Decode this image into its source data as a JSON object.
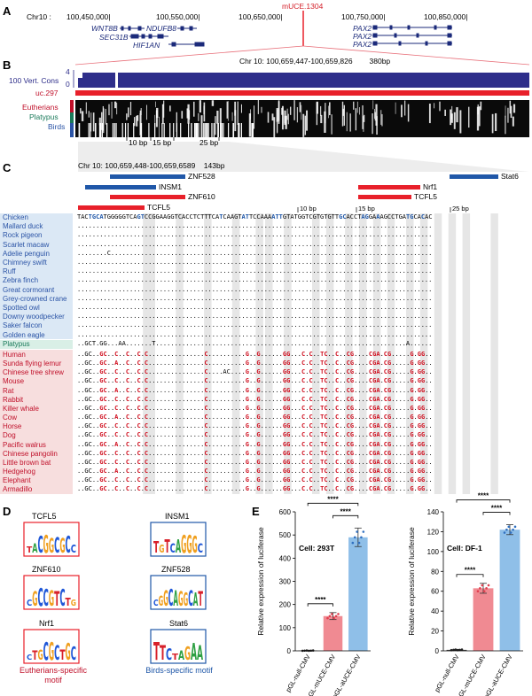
{
  "panels": {
    "a": "A",
    "b": "B",
    "c": "C",
    "d": "D",
    "e": "E"
  },
  "panelA": {
    "chrom": "Chr10 :",
    "ticks": [
      "100,450,000|",
      "100,550,000|",
      "100,650,000|",
      "100,750,000|",
      "100,850,000|"
    ],
    "highlight": "mUCE.1304",
    "genes": [
      "WNT8B",
      "NDUFB8",
      "SEC31B",
      "HIF1AN",
      "PAX2",
      "PAX2",
      "PAX2"
    ]
  },
  "panelB": {
    "coords": "Chr 10: 100,659,447-100,659,826",
    "size": "380bp",
    "cons_label": "100 Vert. Cons",
    "ymax": "4",
    "ymin": "0",
    "uce_label": "uc.297",
    "tracks": [
      "Eutherians",
      "Platypus",
      "Birds"
    ],
    "scale": [
      "10 bp",
      "15 bp",
      "25 bp"
    ]
  },
  "panelC": {
    "coords": "Chr 10: 100,659,448-100,659,6589",
    "size": "143bp",
    "motifs": [
      "ZNF528",
      "INSM1",
      "ZNF610",
      "TCFL5",
      "Nrf1",
      "TCFL5",
      "Stat6"
    ],
    "ref_seq": "TACTGCATGGGGGTCAGTCCGGAAGGTCACCTCTTTCATCAAGTATTCCAAAATTGTATGGTCGTGTGTTGCACCTAGGAAAGCCTGATGCACAC",
    "scale": [
      "10 bp",
      "15 bp",
      "25 bp"
    ],
    "birds": [
      "Chicken",
      "Mallard duck",
      "Rock pigeon",
      "Scarlet macaw",
      "Adelie penguin",
      "Chimney swift",
      "Ruff",
      "Zebra finch",
      "Great cormorant",
      "Grey-crowned crane",
      "Spotted owl",
      "Downy woodpecker",
      "Saker falcon",
      "Golden eagle"
    ],
    "platypus": "Platypus",
    "mammals": [
      "Human",
      "Sunda flying lemur",
      "Chinese tree shrew",
      "Mouse",
      "Rat",
      "Rabbit",
      "Killer whale",
      "Cow",
      "Horse",
      "Dog",
      "Pacific walrus",
      "Chinese pangolin",
      "Little brown bat",
      "Hedgehog",
      "Elephant",
      "Armadillo"
    ]
  },
  "panelD": {
    "motifs": [
      "TCFL5",
      "INSM1",
      "ZNF610",
      "ZNF528",
      "Nrf1",
      "Stat6"
    ],
    "eutherian_caption": "Eutherians-specific motif",
    "bird_caption": "Birds-specific motif"
  },
  "panelE": {
    "ylabel": "Relative expression of luciferase",
    "colors": {
      "null": "#4d4d4d",
      "muce": "#f08a92",
      "auce": "#8fbfe8"
    },
    "chart_data": [
      {
        "type": "bar",
        "title": "Cell: 293T",
        "categories": [
          "pGL-null-CMV",
          "pGL-mUCE-CMV",
          "pGL-aUCE-CMV"
        ],
        "values": [
          1,
          150,
          490
        ],
        "errors": [
          1,
          15,
          40
        ],
        "ylim": [
          0,
          600
        ],
        "yticks": [
          "0",
          "100",
          "200",
          "300",
          "400",
          "500",
          "600"
        ],
        "significance": [
          "****",
          "****",
          "****"
        ]
      },
      {
        "type": "bar",
        "title": "Cell: DF-1",
        "categories": [
          "pGL-null-CMV",
          "pGL-mUCE-CMV",
          "pGL-aUCE-CMV"
        ],
        "values": [
          1,
          63,
          122
        ],
        "errors": [
          0.5,
          5,
          5
        ],
        "ylim": [
          0,
          140
        ],
        "yticks": [
          "0",
          "20",
          "40",
          "60",
          "80",
          "100",
          "120",
          "140"
        ],
        "significance": [
          "****",
          "****",
          "****"
        ]
      }
    ]
  }
}
